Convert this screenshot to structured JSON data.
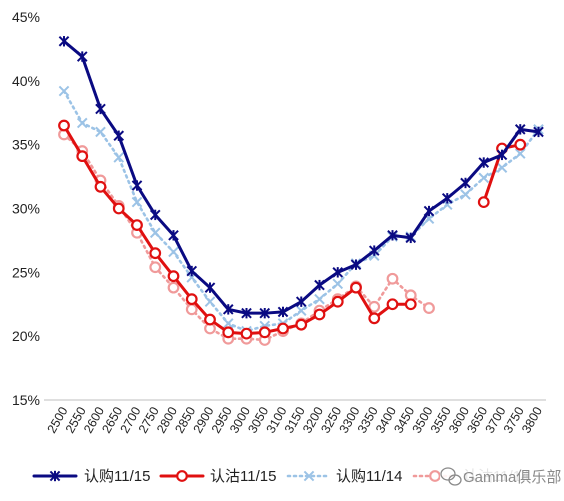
{
  "chart_data": {
    "type": "line",
    "title": "",
    "xlabel": "",
    "ylabel": "",
    "ylim": [
      15,
      45
    ],
    "yticks": [
      "15%",
      "20%",
      "25%",
      "30%",
      "35%",
      "40%",
      "45%"
    ],
    "ytick_values": [
      15,
      20,
      25,
      30,
      35,
      40,
      45
    ],
    "categories": [
      "2500",
      "2550",
      "2600",
      "2650",
      "2700",
      "2750",
      "2800",
      "2850",
      "2900",
      "2950",
      "3000",
      "3050",
      "3100",
      "3150",
      "3200",
      "3250",
      "3300",
      "3350",
      "3400",
      "3450",
      "3500",
      "3550",
      "3600",
      "3650",
      "3700",
      "3750",
      "3800"
    ],
    "grid": false,
    "legend_position": "bottom",
    "series": [
      {
        "name": "认购11/15",
        "color": "#0a0a82",
        "marker": "star",
        "style": "solid",
        "values": [
          43.1,
          41.9,
          37.8,
          35.7,
          31.8,
          29.5,
          27.9,
          25.1,
          23.8,
          22.1,
          21.8,
          21.8,
          21.9,
          22.7,
          24.0,
          25.0,
          25.6,
          26.7,
          27.9,
          27.7,
          29.8,
          30.8,
          32.0,
          33.6,
          34.2,
          36.2,
          36.0
        ]
      },
      {
        "name": "认沽11/15",
        "color": "#e01010",
        "marker": "circle",
        "style": "solid",
        "values": [
          36.5,
          34.1,
          31.7,
          30.0,
          28.7,
          26.5,
          24.7,
          22.9,
          21.3,
          20.3,
          20.2,
          20.3,
          20.6,
          20.9,
          21.7,
          22.7,
          23.8,
          21.4,
          22.5,
          22.5,
          null,
          null,
          null,
          30.5,
          34.7,
          35.0,
          null
        ]
      },
      {
        "name": "认购11/14",
        "color": "#9cc3e6",
        "marker": "x",
        "style": "dotted",
        "values": [
          39.2,
          36.7,
          36.0,
          34.0,
          30.5,
          28.1,
          26.6,
          24.6,
          22.7,
          21.0,
          20.4,
          20.8,
          21.0,
          22.0,
          22.9,
          24.1,
          25.7,
          26.3,
          27.8,
          27.8,
          29.2,
          30.3,
          31.1,
          32.4,
          33.2,
          34.3,
          36.2
        ]
      },
      {
        "name": "认沽11/14",
        "color": "#f09a9a",
        "marker": "circle",
        "style": "dotted",
        "values": [
          35.8,
          34.5,
          32.2,
          30.2,
          28.1,
          25.4,
          23.8,
          22.1,
          20.6,
          19.8,
          19.8,
          19.7,
          20.4,
          21.0,
          22.0,
          22.9,
          23.9,
          22.3,
          24.5,
          23.2,
          22.2,
          null,
          null,
          null,
          null,
          null,
          null
        ]
      }
    ]
  },
  "watermark_text": "Gamma俱乐部"
}
